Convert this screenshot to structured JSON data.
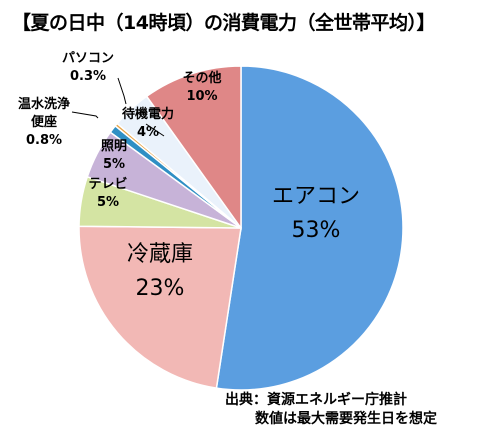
{
  "chart_data": {
    "type": "pie",
    "title": "【夏の日中（14時頃）の消費電力（全世帯平均）】",
    "start_angle_deg": 0,
    "direction": "clockwise",
    "slices": [
      {
        "label": "エアコン",
        "value": 53,
        "value_label": "53%",
        "color": "#5b9ee0",
        "label_placement": "inside-large"
      },
      {
        "label": "冷蔵庫",
        "value": 23,
        "value_label": "23%",
        "color": "#f2b8b5",
        "label_placement": "inside-large"
      },
      {
        "label": "テレビ",
        "value": 5,
        "value_label": "5%",
        "color": "#d4e4a3",
        "label_placement": "inside-small"
      },
      {
        "label": "照明",
        "value": 5,
        "value_label": "5%",
        "color": "#c7b3d8",
        "label_placement": "inside-small"
      },
      {
        "label": "温水洗浄便座",
        "label_lines": [
          "温水洗浄",
          "便座"
        ],
        "value": 0.8,
        "value_label": "0.8%",
        "color": "#2f8fc4",
        "label_placement": "outside"
      },
      {
        "label": "パソコン",
        "value": 0.3,
        "value_label": "0.3%",
        "color": "#e8a54a",
        "label_placement": "outside"
      },
      {
        "label": "待機電力",
        "value": 4,
        "value_label": "4%",
        "color": "#eaf2fb",
        "label_placement": "inside-small"
      },
      {
        "label": "その他",
        "value": 10,
        "value_label": "10%",
        "color": "#df8787",
        "label_placement": "inside-small"
      }
    ]
  },
  "source_note": {
    "line1": "出典：資源エネルギー庁推計",
    "line2": "数値は最大需要発生日を想定"
  }
}
